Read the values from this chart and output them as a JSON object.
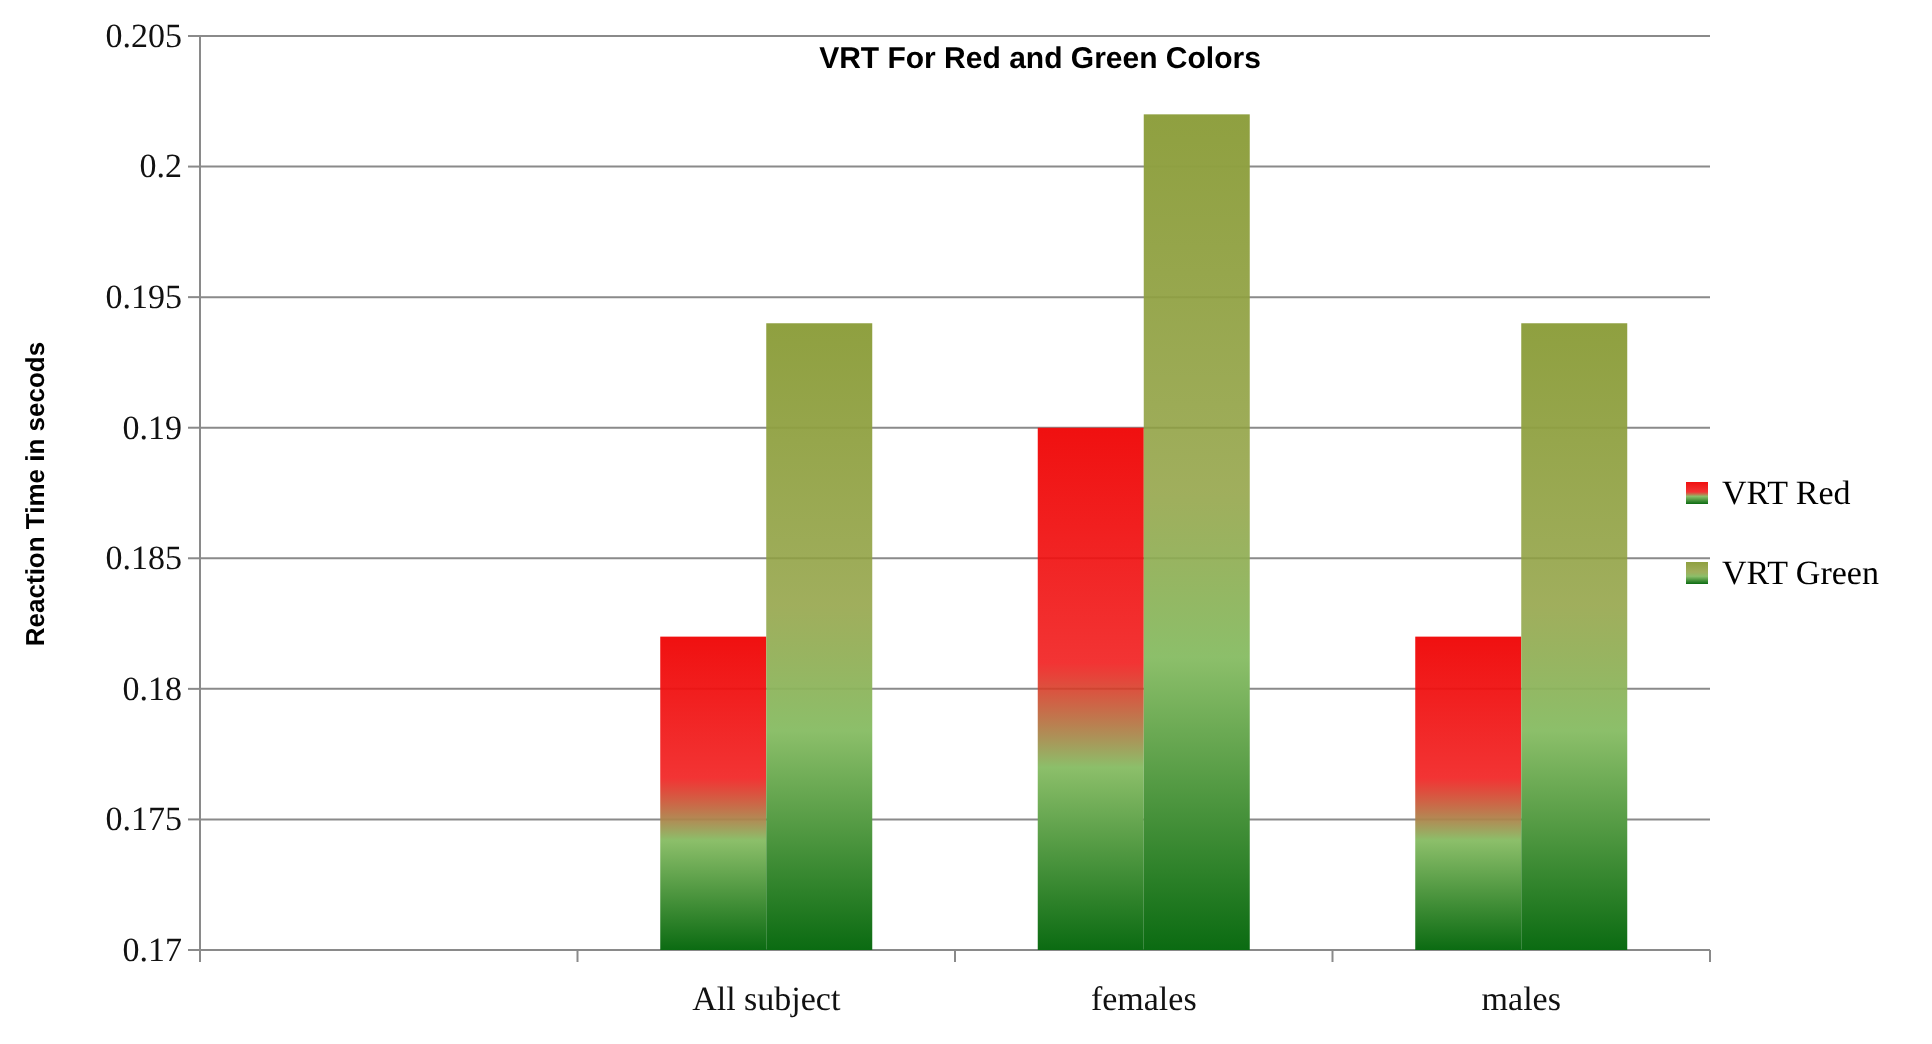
{
  "chart_data": {
    "type": "bar",
    "title": "VRT For Red and Green Colors",
    "ylabel": "Reaction Time in secods",
    "categories": [
      null,
      "All subject",
      "females",
      "males"
    ],
    "series": [
      {
        "name": "VRT Red",
        "color": "#f01010",
        "values": [
          null,
          0.182,
          0.19,
          0.182
        ]
      },
      {
        "name": "VRT Green",
        "color": "#8fa040",
        "values": [
          null,
          0.194,
          0.202,
          0.194
        ]
      }
    ],
    "ylim": [
      0.17,
      0.205
    ],
    "yticks": [
      0.17,
      0.175,
      0.18,
      0.185,
      0.19,
      0.195,
      0.2,
      0.205
    ],
    "grid": "y",
    "legend": "right"
  }
}
